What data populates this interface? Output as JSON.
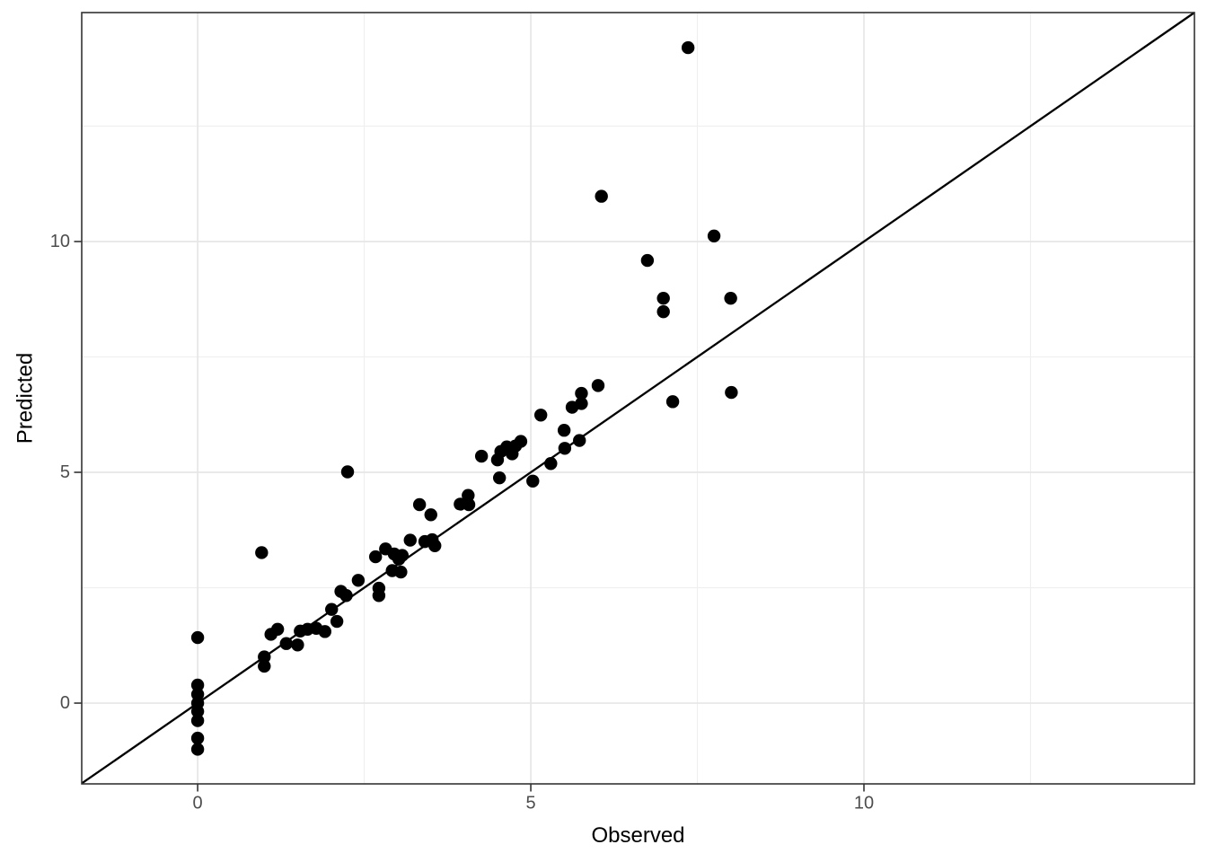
{
  "chart_data": {
    "type": "scatter",
    "title": "",
    "xlabel": "Observed",
    "ylabel": "Predicted",
    "x_tick_values": [
      0,
      5,
      10
    ],
    "x_tick_labels": [
      "0",
      "5",
      "10"
    ],
    "y_tick_values": [
      0,
      5,
      10
    ],
    "y_tick_labels": [
      "0",
      "5",
      "10"
    ],
    "x_minor_gridlines": [
      2.5,
      7.5,
      12.5
    ],
    "y_minor_gridlines": [
      2.5,
      7.5,
      12.5
    ],
    "xlim": [
      -1.74,
      14.96
    ],
    "ylim": [
      -1.75,
      14.96
    ],
    "grid": "major+minor",
    "legend": "none",
    "reference_line": {
      "type": "identity",
      "equation": "y = x"
    },
    "marker": {
      "shape": "circle",
      "radius_px": 7.2
    },
    "colors": {
      "point": "#000000",
      "reference_line": "#000000",
      "grid_major": "#E6E6E6",
      "grid_minor": "#EFEFEF",
      "panel_border": "#333333",
      "tick_mark": "#333333",
      "tick_label": "#4D4D4D",
      "axis_title": "#000000",
      "background": "#FFFFFF"
    },
    "points": [
      [
        0,
        1.42
      ],
      [
        0,
        0.39
      ],
      [
        0,
        0.19
      ],
      [
        0,
        0.0
      ],
      [
        0,
        -0.18
      ],
      [
        0,
        -0.38
      ],
      [
        0,
        -0.76
      ],
      [
        0,
        -1.0
      ],
      [
        0.96,
        3.26
      ],
      [
        1.0,
        1.0
      ],
      [
        1.0,
        0.8
      ],
      [
        1.1,
        1.49
      ],
      [
        1.2,
        1.6
      ],
      [
        1.33,
        1.29
      ],
      [
        1.5,
        1.26
      ],
      [
        1.54,
        1.56
      ],
      [
        1.65,
        1.6
      ],
      [
        1.78,
        1.62
      ],
      [
        1.91,
        1.55
      ],
      [
        2.01,
        2.03
      ],
      [
        2.09,
        1.77
      ],
      [
        2.15,
        2.42
      ],
      [
        2.23,
        2.33
      ],
      [
        2.41,
        2.66
      ],
      [
        2.25,
        5.01
      ],
      [
        2.72,
        2.49
      ],
      [
        2.72,
        2.33
      ],
      [
        2.67,
        3.17
      ],
      [
        2.82,
        3.34
      ],
      [
        2.95,
        3.23
      ],
      [
        3.02,
        3.12
      ],
      [
        3.07,
        3.2
      ],
      [
        2.92,
        2.87
      ],
      [
        3.05,
        2.84
      ],
      [
        3.19,
        3.53
      ],
      [
        3.41,
        3.5
      ],
      [
        3.52,
        3.54
      ],
      [
        3.56,
        3.41
      ],
      [
        3.33,
        4.3
      ],
      [
        3.5,
        4.08
      ],
      [
        3.94,
        4.31
      ],
      [
        4.06,
        4.5
      ],
      [
        4.07,
        4.3
      ],
      [
        4.26,
        5.35
      ],
      [
        4.5,
        5.27
      ],
      [
        4.55,
        5.45
      ],
      [
        4.64,
        5.55
      ],
      [
        4.72,
        5.4
      ],
      [
        4.77,
        5.57
      ],
      [
        4.85,
        5.67
      ],
      [
        4.53,
        4.88
      ],
      [
        5.03,
        4.81
      ],
      [
        5.15,
        6.24
      ],
      [
        5.3,
        5.19
      ],
      [
        5.5,
        5.91
      ],
      [
        5.51,
        5.52
      ],
      [
        5.62,
        6.41
      ],
      [
        5.73,
        5.69
      ],
      [
        5.76,
        6.49
      ],
      [
        5.76,
        6.71
      ],
      [
        6.01,
        6.88
      ],
      [
        6.06,
        10.98
      ],
      [
        6.75,
        9.59
      ],
      [
        6.99,
        8.77
      ],
      [
        6.99,
        8.48
      ],
      [
        7.13,
        6.53
      ],
      [
        7.36,
        14.2
      ],
      [
        7.75,
        10.12
      ],
      [
        8.0,
        8.77
      ],
      [
        8.01,
        6.73
      ]
    ]
  }
}
